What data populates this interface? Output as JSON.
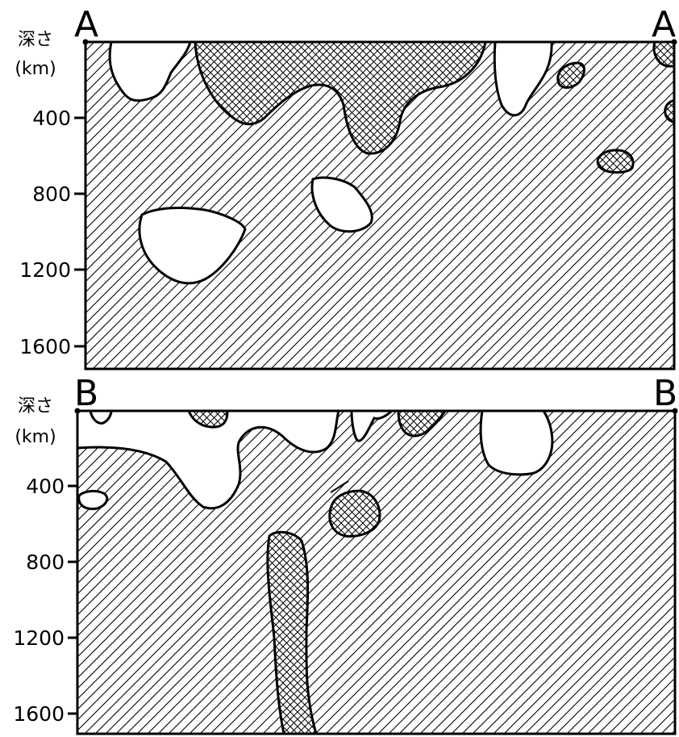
{
  "section_a": {
    "label_left": "A",
    "label_right": "A",
    "axis_title_line1": "深さ",
    "axis_title_line2": "(km)",
    "ticks": [
      "400",
      "800",
      "1200",
      "1600"
    ]
  },
  "section_b": {
    "label_left": "B",
    "label_right": "B",
    "axis_title_line1": "深さ",
    "axis_title_line2": "(km)",
    "ticks": [
      "400",
      "800",
      "1200",
      "1600"
    ]
  }
}
